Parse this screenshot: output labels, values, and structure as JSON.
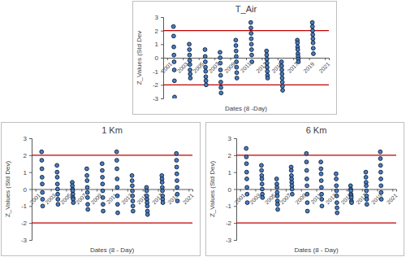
{
  "chart_data": [
    {
      "type": "scatter",
      "title": "T_Air",
      "x_label": "Dates (8 -Day)",
      "y_label": "Z_Values (Std Dev",
      "x": [
        2001.8,
        2001.82,
        2001.84,
        2001.86,
        2001.88,
        2001.9,
        2001.92,
        2001.94,
        2003.8,
        2003.82,
        2003.84,
        2003.86,
        2003.88,
        2003.9,
        2003.92,
        2003.94,
        2005.8,
        2005.82,
        2005.84,
        2005.86,
        2005.88,
        2005.9,
        2005.92,
        2005.94,
        2007.7,
        2007.72,
        2007.74,
        2007.76,
        2007.78,
        2007.8,
        2007.82,
        2007.84,
        2009.7,
        2009.72,
        2009.74,
        2009.76,
        2009.78,
        2009.8,
        2009.82,
        2009.84,
        2011.6,
        2011.62,
        2011.64,
        2011.66,
        2011.68,
        2011.7,
        2011.72,
        2011.74,
        2013.6,
        2013.62,
        2013.64,
        2013.66,
        2013.68,
        2013.7,
        2013.72,
        2013.74,
        2015.5,
        2015.52,
        2015.54,
        2015.56,
        2015.58,
        2015.6,
        2015.62,
        2015.64,
        2017.5,
        2017.52,
        2017.54,
        2017.56,
        2017.58,
        2017.6,
        2017.62,
        2017.64,
        2019.4,
        2019.42,
        2019.44,
        2019.46,
        2019.48,
        2019.5,
        2019.52,
        2019.54
      ],
      "values": [
        2.3,
        1.6,
        0.8,
        0.2,
        -0.3,
        -0.9,
        -1.7,
        -2.9,
        1.0,
        0.6,
        0.2,
        -0.2,
        -0.5,
        -0.9,
        -1.2,
        -1.5,
        0.6,
        0.1,
        -0.3,
        -0.7,
        -1.0,
        -1.4,
        -1.7,
        -2.0,
        0.4,
        0.0,
        -0.4,
        -0.9,
        -1.3,
        -1.8,
        -2.2,
        -2.6,
        1.3,
        0.9,
        0.5,
        0.1,
        -0.3,
        -0.7,
        -1.1,
        -1.5,
        2.6,
        2.2,
        1.8,
        1.4,
        1.0,
        0.6,
        0.2,
        -0.3,
        0.5,
        0.2,
        -0.1,
        -0.4,
        -0.7,
        -1.0,
        -1.3,
        -1.5,
        -0.3,
        -0.6,
        -0.9,
        -1.2,
        -1.5,
        -1.8,
        -2.1,
        -2.4,
        1.3,
        1.1,
        0.8,
        0.6,
        0.3,
        0.1,
        -0.1,
        -0.3,
        2.6,
        2.3,
        2.0,
        1.7,
        1.4,
        1.1,
        0.7,
        0.3
      ],
      "color": "#4a7fc1",
      "reference_lines": [
        2,
        -2
      ],
      "xlim": [
        2000.5,
        2021.5
      ],
      "xticks": [
        2001,
        2003,
        2005,
        2007,
        2009,
        2011,
        2013,
        2015,
        2017,
        2019,
        2021
      ],
      "ylim": [
        -3,
        3
      ],
      "yticks": [
        -3,
        -2,
        -1,
        0,
        1,
        2,
        3
      ],
      "grid": false
    },
    {
      "type": "scatter",
      "title": "1 Km",
      "x_label": "Dates (8 - Day)",
      "y_label": "Z_Values (Std Dev)",
      "x": [
        2001.8,
        2001.82,
        2001.84,
        2001.86,
        2001.88,
        2001.9,
        2001.92,
        2001.94,
        2003.8,
        2003.82,
        2003.84,
        2003.86,
        2003.88,
        2003.9,
        2003.92,
        2003.94,
        2005.8,
        2005.82,
        2005.84,
        2005.86,
        2005.88,
        2005.9,
        2005.92,
        2005.94,
        2007.7,
        2007.72,
        2007.74,
        2007.76,
        2007.78,
        2007.8,
        2007.82,
        2007.84,
        2009.7,
        2009.72,
        2009.74,
        2009.76,
        2009.78,
        2009.8,
        2009.82,
        2009.84,
        2011.6,
        2011.62,
        2011.64,
        2011.66,
        2011.68,
        2011.7,
        2011.72,
        2011.74,
        2013.6,
        2013.62,
        2013.64,
        2013.66,
        2013.68,
        2013.7,
        2013.72,
        2013.74,
        2015.5,
        2015.52,
        2015.54,
        2015.56,
        2015.58,
        2015.6,
        2015.62,
        2015.64,
        2017.5,
        2017.52,
        2017.54,
        2017.56,
        2017.58,
        2017.6,
        2017.62,
        2017.64,
        2019.4,
        2019.42,
        2019.44,
        2019.46,
        2019.48,
        2019.5,
        2019.52,
        2019.54
      ],
      "values": [
        2.2,
        1.7,
        1.2,
        0.7,
        0.3,
        -0.2,
        -0.6,
        -1.0,
        1.4,
        1.0,
        0.7,
        0.3,
        0.0,
        -0.3,
        -0.6,
        -0.9,
        0.4,
        0.2,
        0.0,
        -0.1,
        -0.3,
        -0.5,
        -0.6,
        -0.8,
        1.2,
        0.8,
        0.5,
        0.1,
        -0.2,
        -0.5,
        -0.9,
        -1.2,
        1.5,
        1.1,
        0.7,
        0.3,
        -0.1,
        -0.5,
        -0.9,
        -1.3,
        2.2,
        1.7,
        1.2,
        0.6,
        0.1,
        -0.4,
        -0.9,
        -1.4,
        0.8,
        0.5,
        0.2,
        -0.1,
        -0.4,
        -0.7,
        -1.0,
        -1.3,
        0.1,
        -0.1,
        -0.4,
        -0.6,
        -0.8,
        -1.0,
        -1.3,
        -1.5,
        0.8,
        0.6,
        0.4,
        0.1,
        -0.1,
        -0.4,
        -0.6,
        -0.8,
        2.1,
        1.7,
        1.3,
        0.9,
        0.5,
        0.1,
        -0.3,
        -0.7
      ],
      "color": "#4a7fc1",
      "reference_lines": [
        2,
        -2
      ],
      "xlim": [
        2000.5,
        2021.5
      ],
      "xticks": [
        2001,
        2003,
        2005,
        2007,
        2009,
        2011,
        2013,
        2015,
        2017,
        2019,
        2021
      ],
      "ylim": [
        -3,
        3
      ],
      "yticks": [
        -3,
        -2,
        -1,
        0,
        1,
        2,
        3
      ],
      "grid": false
    },
    {
      "type": "scatter",
      "title": "6 Km",
      "x_label": "Dates (8 - Day)",
      "y_label": "Z_Values (Std Dev)",
      "x": [
        2001.8,
        2001.82,
        2001.84,
        2001.86,
        2001.88,
        2001.9,
        2001.92,
        2001.94,
        2003.8,
        2003.82,
        2003.84,
        2003.86,
        2003.88,
        2003.9,
        2003.92,
        2003.94,
        2005.8,
        2005.82,
        2005.84,
        2005.86,
        2005.88,
        2005.9,
        2005.92,
        2005.94,
        2007.7,
        2007.72,
        2007.74,
        2007.76,
        2007.78,
        2007.8,
        2007.82,
        2007.84,
        2009.7,
        2009.72,
        2009.74,
        2009.76,
        2009.78,
        2009.8,
        2009.82,
        2009.84,
        2011.6,
        2011.62,
        2011.64,
        2011.66,
        2011.68,
        2011.7,
        2011.72,
        2011.74,
        2013.6,
        2013.62,
        2013.64,
        2013.66,
        2013.68,
        2013.7,
        2013.72,
        2013.74,
        2015.5,
        2015.52,
        2015.54,
        2015.56,
        2015.58,
        2015.6,
        2015.62,
        2015.64,
        2017.5,
        2017.52,
        2017.54,
        2017.56,
        2017.58,
        2017.6,
        2017.62,
        2017.64,
        2019.4,
        2019.42,
        2019.44,
        2019.46,
        2019.48,
        2019.5,
        2019.52,
        2019.54
      ],
      "values": [
        2.4,
        1.9,
        1.5,
        1.0,
        0.6,
        0.1,
        -0.3,
        -0.8,
        1.4,
        1.1,
        0.8,
        0.6,
        0.3,
        0.0,
        -0.3,
        -0.5,
        0.6,
        0.3,
        0.1,
        -0.2,
        -0.4,
        -0.7,
        -0.9,
        -1.2,
        1.3,
        1.1,
        0.8,
        0.6,
        0.4,
        0.2,
        0.0,
        -0.3,
        2.1,
        1.6,
        1.1,
        0.6,
        0.2,
        -0.3,
        -0.8,
        -1.3,
        1.6,
        1.2,
        0.9,
        0.5,
        0.1,
        -0.3,
        -0.6,
        -1.0,
        0.9,
        0.6,
        0.2,
        -0.1,
        -0.4,
        -0.8,
        -1.1,
        -1.4,
        0.2,
        0.0,
        -0.1,
        -0.3,
        -0.4,
        -0.5,
        -0.7,
        -0.8,
        1.0,
        0.7,
        0.4,
        0.2,
        -0.1,
        -0.4,
        -0.6,
        -0.9,
        2.2,
        1.8,
        1.4,
        1.0,
        0.6,
        0.2,
        -0.2,
        -0.6
      ],
      "color": "#4a7fc1",
      "reference_lines": [
        2,
        -2
      ],
      "xlim": [
        2000.5,
        2021.5
      ],
      "xticks": [
        2001,
        2003,
        2005,
        2007,
        2009,
        2011,
        2013,
        2015,
        2017,
        2019,
        2021
      ],
      "ylim": [
        -3,
        3
      ],
      "yticks": [
        -3,
        -2,
        -1,
        0,
        1,
        2,
        3
      ],
      "grid": false
    }
  ]
}
